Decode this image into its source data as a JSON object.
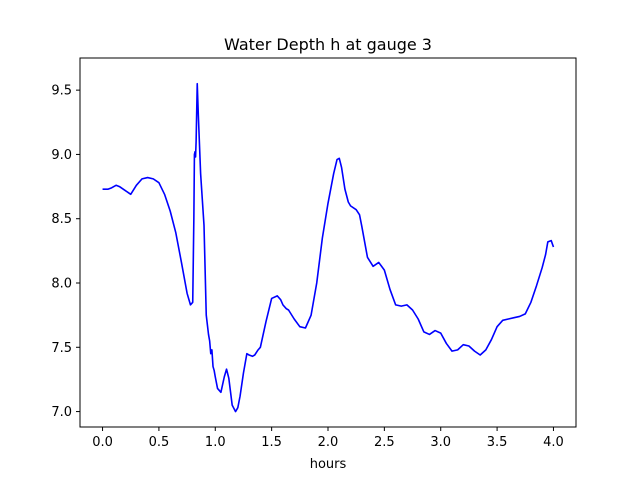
{
  "chart_data": {
    "type": "line",
    "title": "Water Depth h at gauge 3",
    "xlabel": "hours",
    "ylabel": "",
    "xlim": [
      -0.2,
      4.2
    ],
    "ylim": [
      6.88,
      9.75
    ],
    "xticks": [
      0.0,
      0.5,
      1.0,
      1.5,
      2.0,
      2.5,
      3.0,
      3.5,
      4.0
    ],
    "xtick_labels": [
      "0.0",
      "0.5",
      "1.0",
      "1.5",
      "2.0",
      "2.5",
      "3.0",
      "3.5",
      "4.0"
    ],
    "yticks": [
      7.0,
      7.5,
      8.0,
      8.5,
      9.0,
      9.5
    ],
    "ytick_labels": [
      "7.0",
      "7.5",
      "8.0",
      "8.5",
      "9.0",
      "9.5"
    ],
    "grid": false,
    "series": [
      {
        "color": "#0000ff",
        "x": [
          0.0,
          0.05,
          0.08,
          0.1,
          0.12,
          0.15,
          0.2,
          0.25,
          0.3,
          0.35,
          0.4,
          0.45,
          0.5,
          0.55,
          0.6,
          0.65,
          0.7,
          0.75,
          0.78,
          0.8,
          0.81,
          0.815,
          0.82,
          0.825,
          0.83,
          0.84,
          0.85,
          0.87,
          0.9,
          0.92,
          0.94,
          0.95,
          0.96,
          0.97,
          0.98,
          0.99,
          1.0,
          1.02,
          1.05,
          1.08,
          1.1,
          1.12,
          1.15,
          1.18,
          1.2,
          1.22,
          1.25,
          1.28,
          1.3,
          1.33,
          1.35,
          1.38,
          1.4,
          1.45,
          1.5,
          1.55,
          1.58,
          1.6,
          1.63,
          1.65,
          1.7,
          1.75,
          1.8,
          1.85,
          1.9,
          1.95,
          2.0,
          2.05,
          2.08,
          2.1,
          2.12,
          2.15,
          2.18,
          2.2,
          2.25,
          2.28,
          2.3,
          2.35,
          2.4,
          2.45,
          2.5,
          2.55,
          2.6,
          2.65,
          2.7,
          2.75,
          2.8,
          2.85,
          2.9,
          2.95,
          3.0,
          3.05,
          3.1,
          3.15,
          3.2,
          3.25,
          3.3,
          3.35,
          3.4,
          3.45,
          3.5,
          3.55,
          3.6,
          3.65,
          3.7,
          3.75,
          3.8,
          3.85,
          3.9,
          3.93,
          3.95,
          3.98,
          4.0
        ],
        "y": [
          8.73,
          8.73,
          8.74,
          8.75,
          8.76,
          8.75,
          8.72,
          8.69,
          8.76,
          8.81,
          8.82,
          8.81,
          8.78,
          8.69,
          8.56,
          8.39,
          8.16,
          7.92,
          7.83,
          7.85,
          8.5,
          9.0,
          9.02,
          8.98,
          9.1,
          9.55,
          9.3,
          8.85,
          8.45,
          7.75,
          7.6,
          7.55,
          7.45,
          7.48,
          7.35,
          7.32,
          7.27,
          7.18,
          7.15,
          7.27,
          7.33,
          7.26,
          7.05,
          7.0,
          7.03,
          7.12,
          7.3,
          7.45,
          7.44,
          7.43,
          7.44,
          7.48,
          7.5,
          7.7,
          7.88,
          7.9,
          7.87,
          7.83,
          7.8,
          7.79,
          7.72,
          7.66,
          7.65,
          7.75,
          8.0,
          8.35,
          8.62,
          8.85,
          8.96,
          8.97,
          8.9,
          8.73,
          8.63,
          8.6,
          8.57,
          8.53,
          8.44,
          8.2,
          8.13,
          8.16,
          8.1,
          7.95,
          7.83,
          7.82,
          7.83,
          7.79,
          7.72,
          7.62,
          7.6,
          7.63,
          7.61,
          7.53,
          7.47,
          7.48,
          7.52,
          7.51,
          7.47,
          7.44,
          7.48,
          7.56,
          7.66,
          7.71,
          7.72,
          7.73,
          7.74,
          7.76,
          7.85,
          7.98,
          8.12,
          8.22,
          8.32,
          8.33,
          8.28
        ]
      }
    ]
  }
}
